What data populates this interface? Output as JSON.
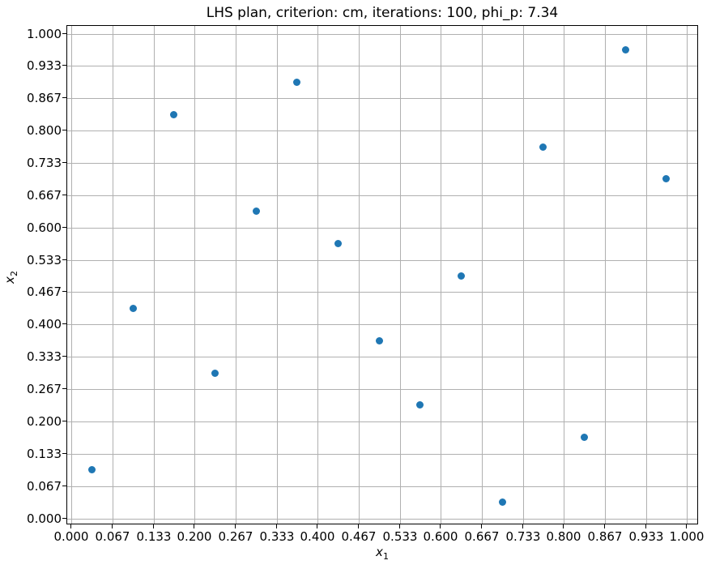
{
  "chart_data": {
    "type": "scatter",
    "title": "LHS plan, criterion: cm, iterations: 100, phi_p: 7.34",
    "xlabel_base": "x",
    "xlabel_sub": "1",
    "ylabel_base": "x",
    "ylabel_sub": "2",
    "xlim": [
      -0.0133,
      1.0133
    ],
    "ylim": [
      -0.0133,
      1.0133
    ],
    "grid": true,
    "legend_position": "none",
    "marker_color": "#1f77b4",
    "grid_color": "#b0b0b0",
    "tick_values": [
      0.0,
      0.0667,
      0.1333,
      0.2,
      0.2667,
      0.3333,
      0.4,
      0.4667,
      0.5333,
      0.6,
      0.6667,
      0.7333,
      0.8,
      0.8667,
      0.9333,
      1.0
    ],
    "x_tick_labels": [
      "0.000",
      "0.067",
      "0.133",
      "0.200",
      "0.267",
      "0.333",
      "0.400",
      "0.467",
      "0.533",
      "0.600",
      "0.667",
      "0.733",
      "0.800",
      "0.867",
      "0.933",
      "1.000"
    ],
    "y_tick_labels": [
      "0.000",
      "0.067",
      "0.133",
      "0.200",
      "0.267",
      "0.333",
      "0.400",
      "0.467",
      "0.533",
      "0.600",
      "0.667",
      "0.733",
      "0.800",
      "0.867",
      "0.933",
      "1.000"
    ],
    "points": [
      [
        0.0333,
        0.1
      ],
      [
        0.1,
        0.4333
      ],
      [
        0.1667,
        0.8333
      ],
      [
        0.2333,
        0.3
      ],
      [
        0.3,
        0.6333
      ],
      [
        0.3667,
        0.9
      ],
      [
        0.4333,
        0.5667
      ],
      [
        0.5,
        0.3667
      ],
      [
        0.5667,
        0.2333
      ],
      [
        0.6333,
        0.5
      ],
      [
        0.7,
        0.0333
      ],
      [
        0.7667,
        0.7667
      ],
      [
        0.8333,
        0.1667
      ],
      [
        0.9,
        0.9667
      ],
      [
        0.9667,
        0.7
      ]
    ]
  }
}
